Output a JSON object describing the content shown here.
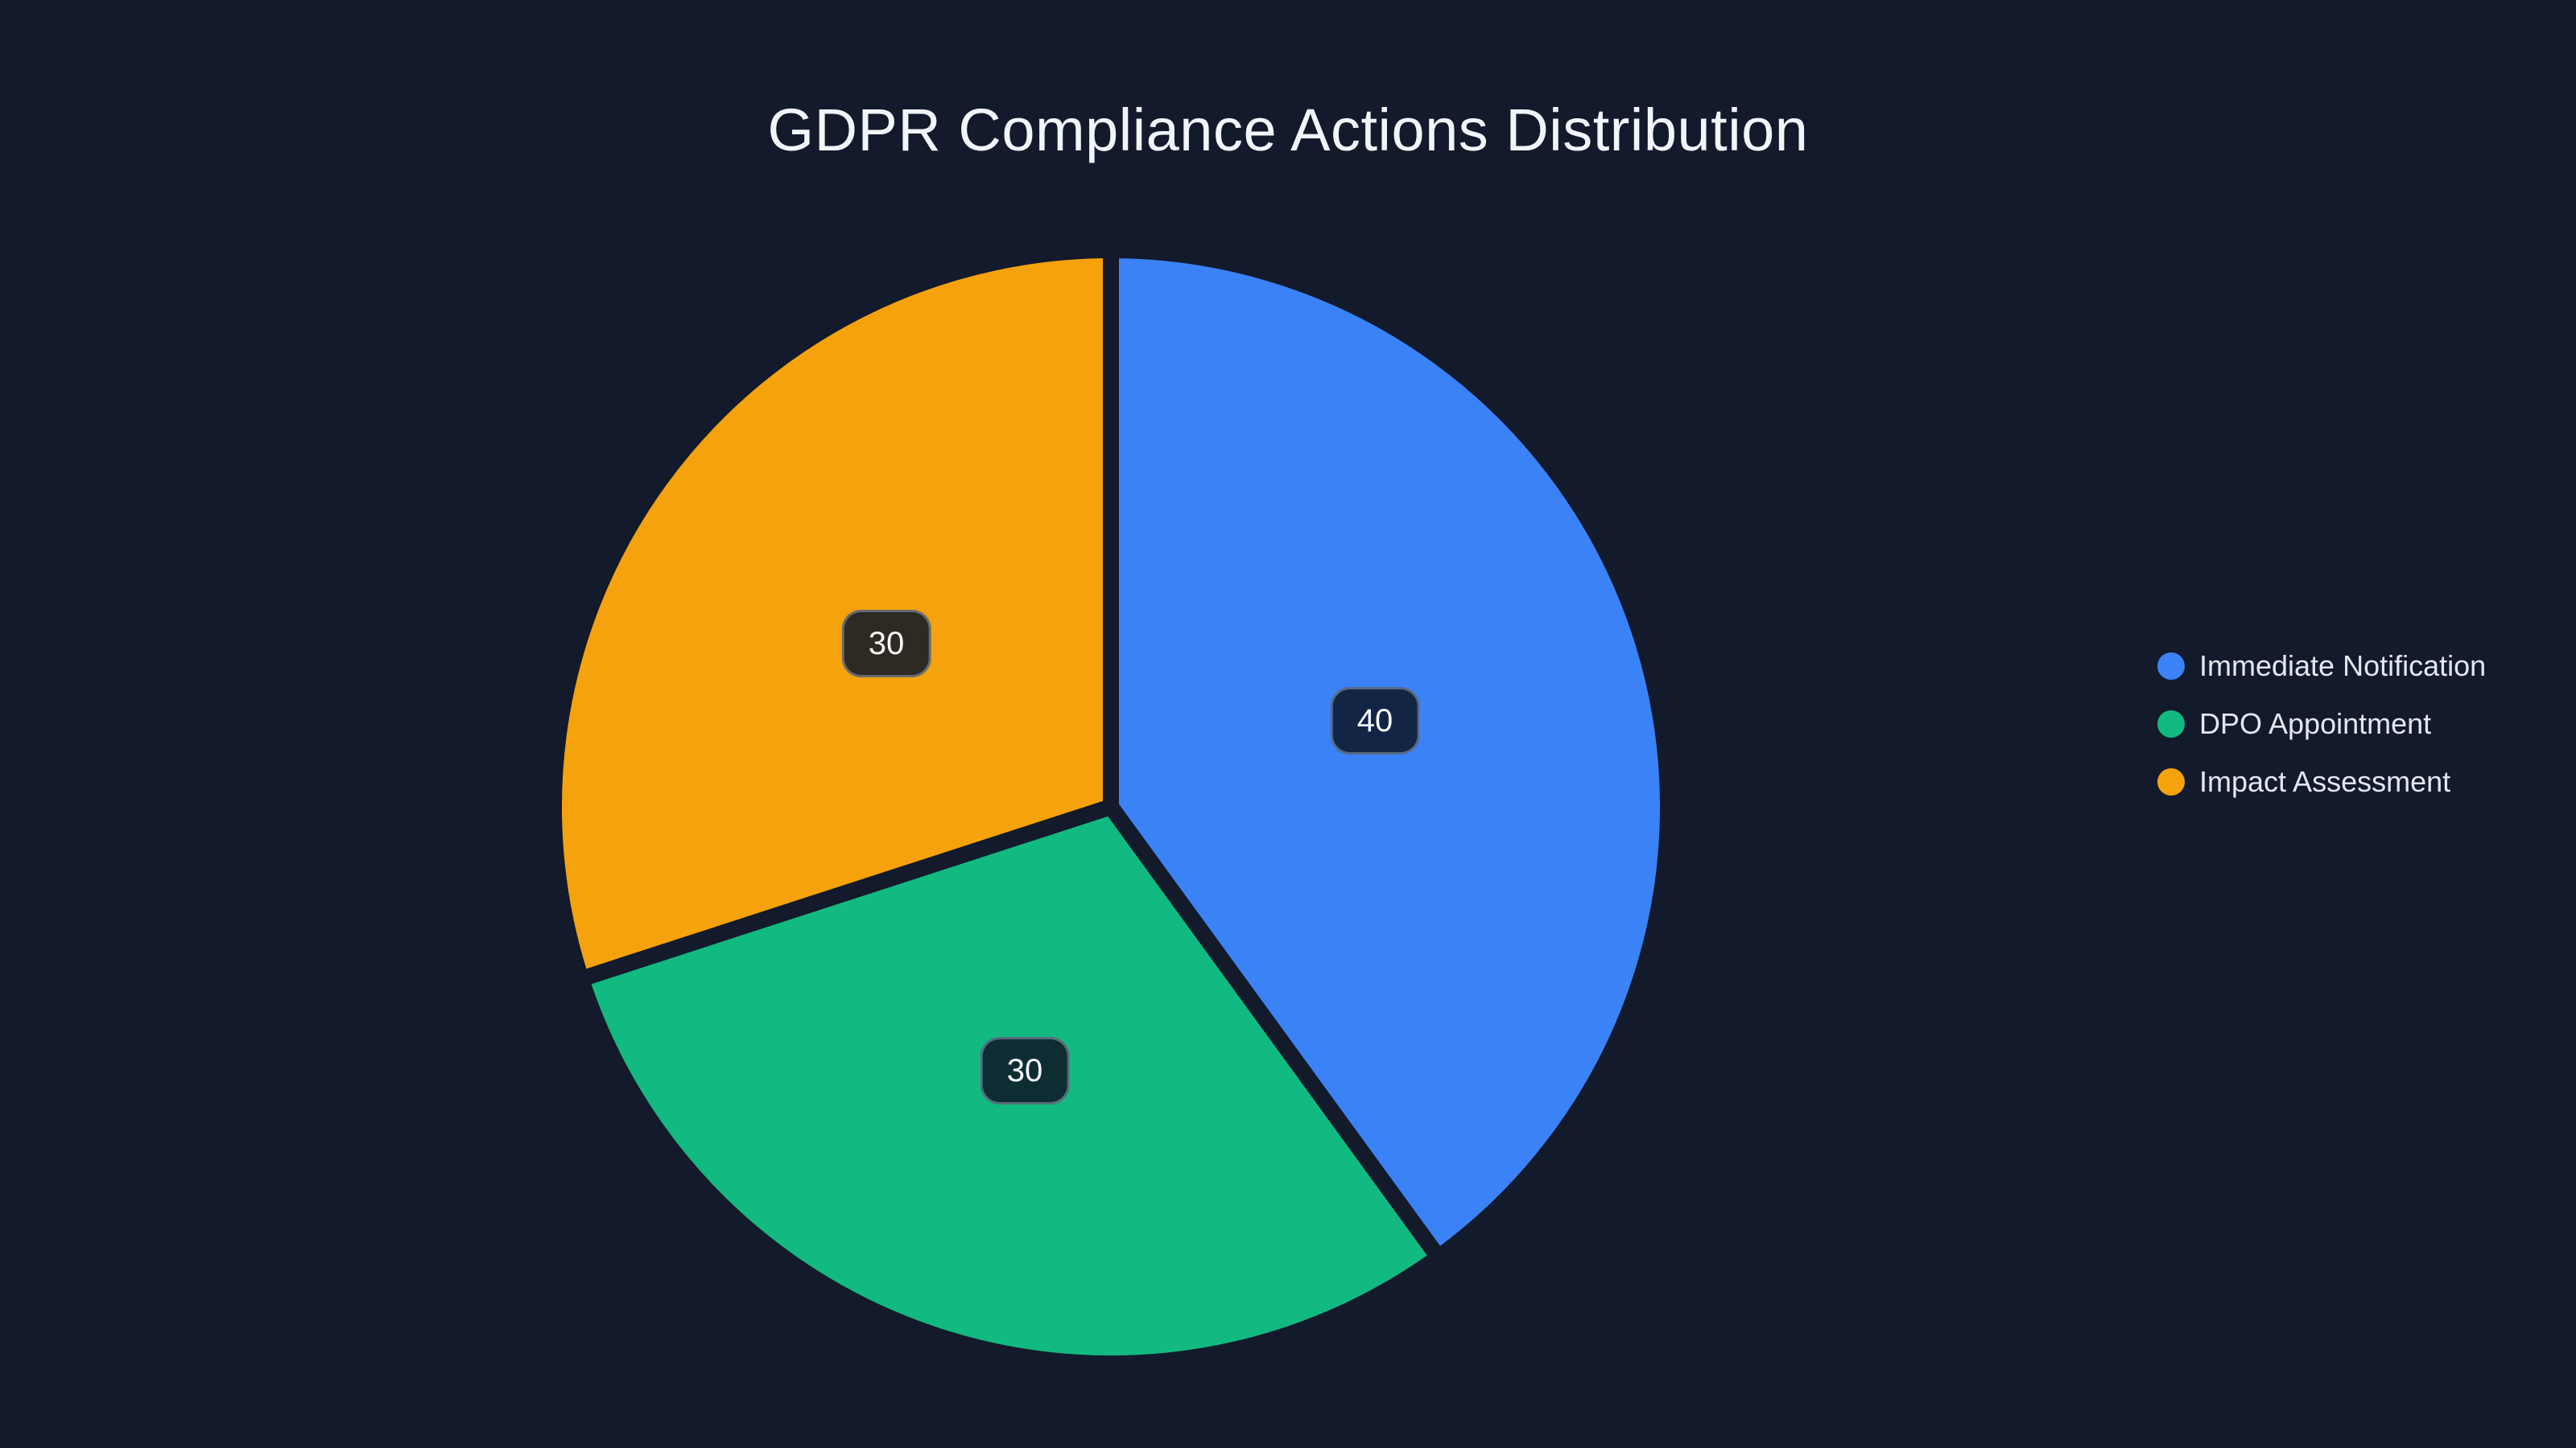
{
  "chart_data": {
    "type": "pie",
    "title": "GDPR Compliance Actions Distribution",
    "categories": [
      "Immediate Notification",
      "DPO Appointment",
      "Impact Assessment"
    ],
    "values": [
      40,
      30,
      30
    ],
    "colors": [
      "#3b82f6",
      "#12b981",
      "#f5a20c"
    ],
    "total": 100,
    "start_angle_deg_clockwise_from_top": 0,
    "slice_order": "clockwise",
    "label_format": "value",
    "label_position": "inside at half radius",
    "legend_position": "middle-right",
    "background_color": "#121a2c",
    "title_color": "#f2f5fa",
    "legend_text_color": "#e2e8f0",
    "label_box": {
      "background": "rgba(13,22,38,0.86)",
      "border_color": "rgba(148,163,184,0.55)",
      "text_color": "#f8fafc"
    }
  }
}
